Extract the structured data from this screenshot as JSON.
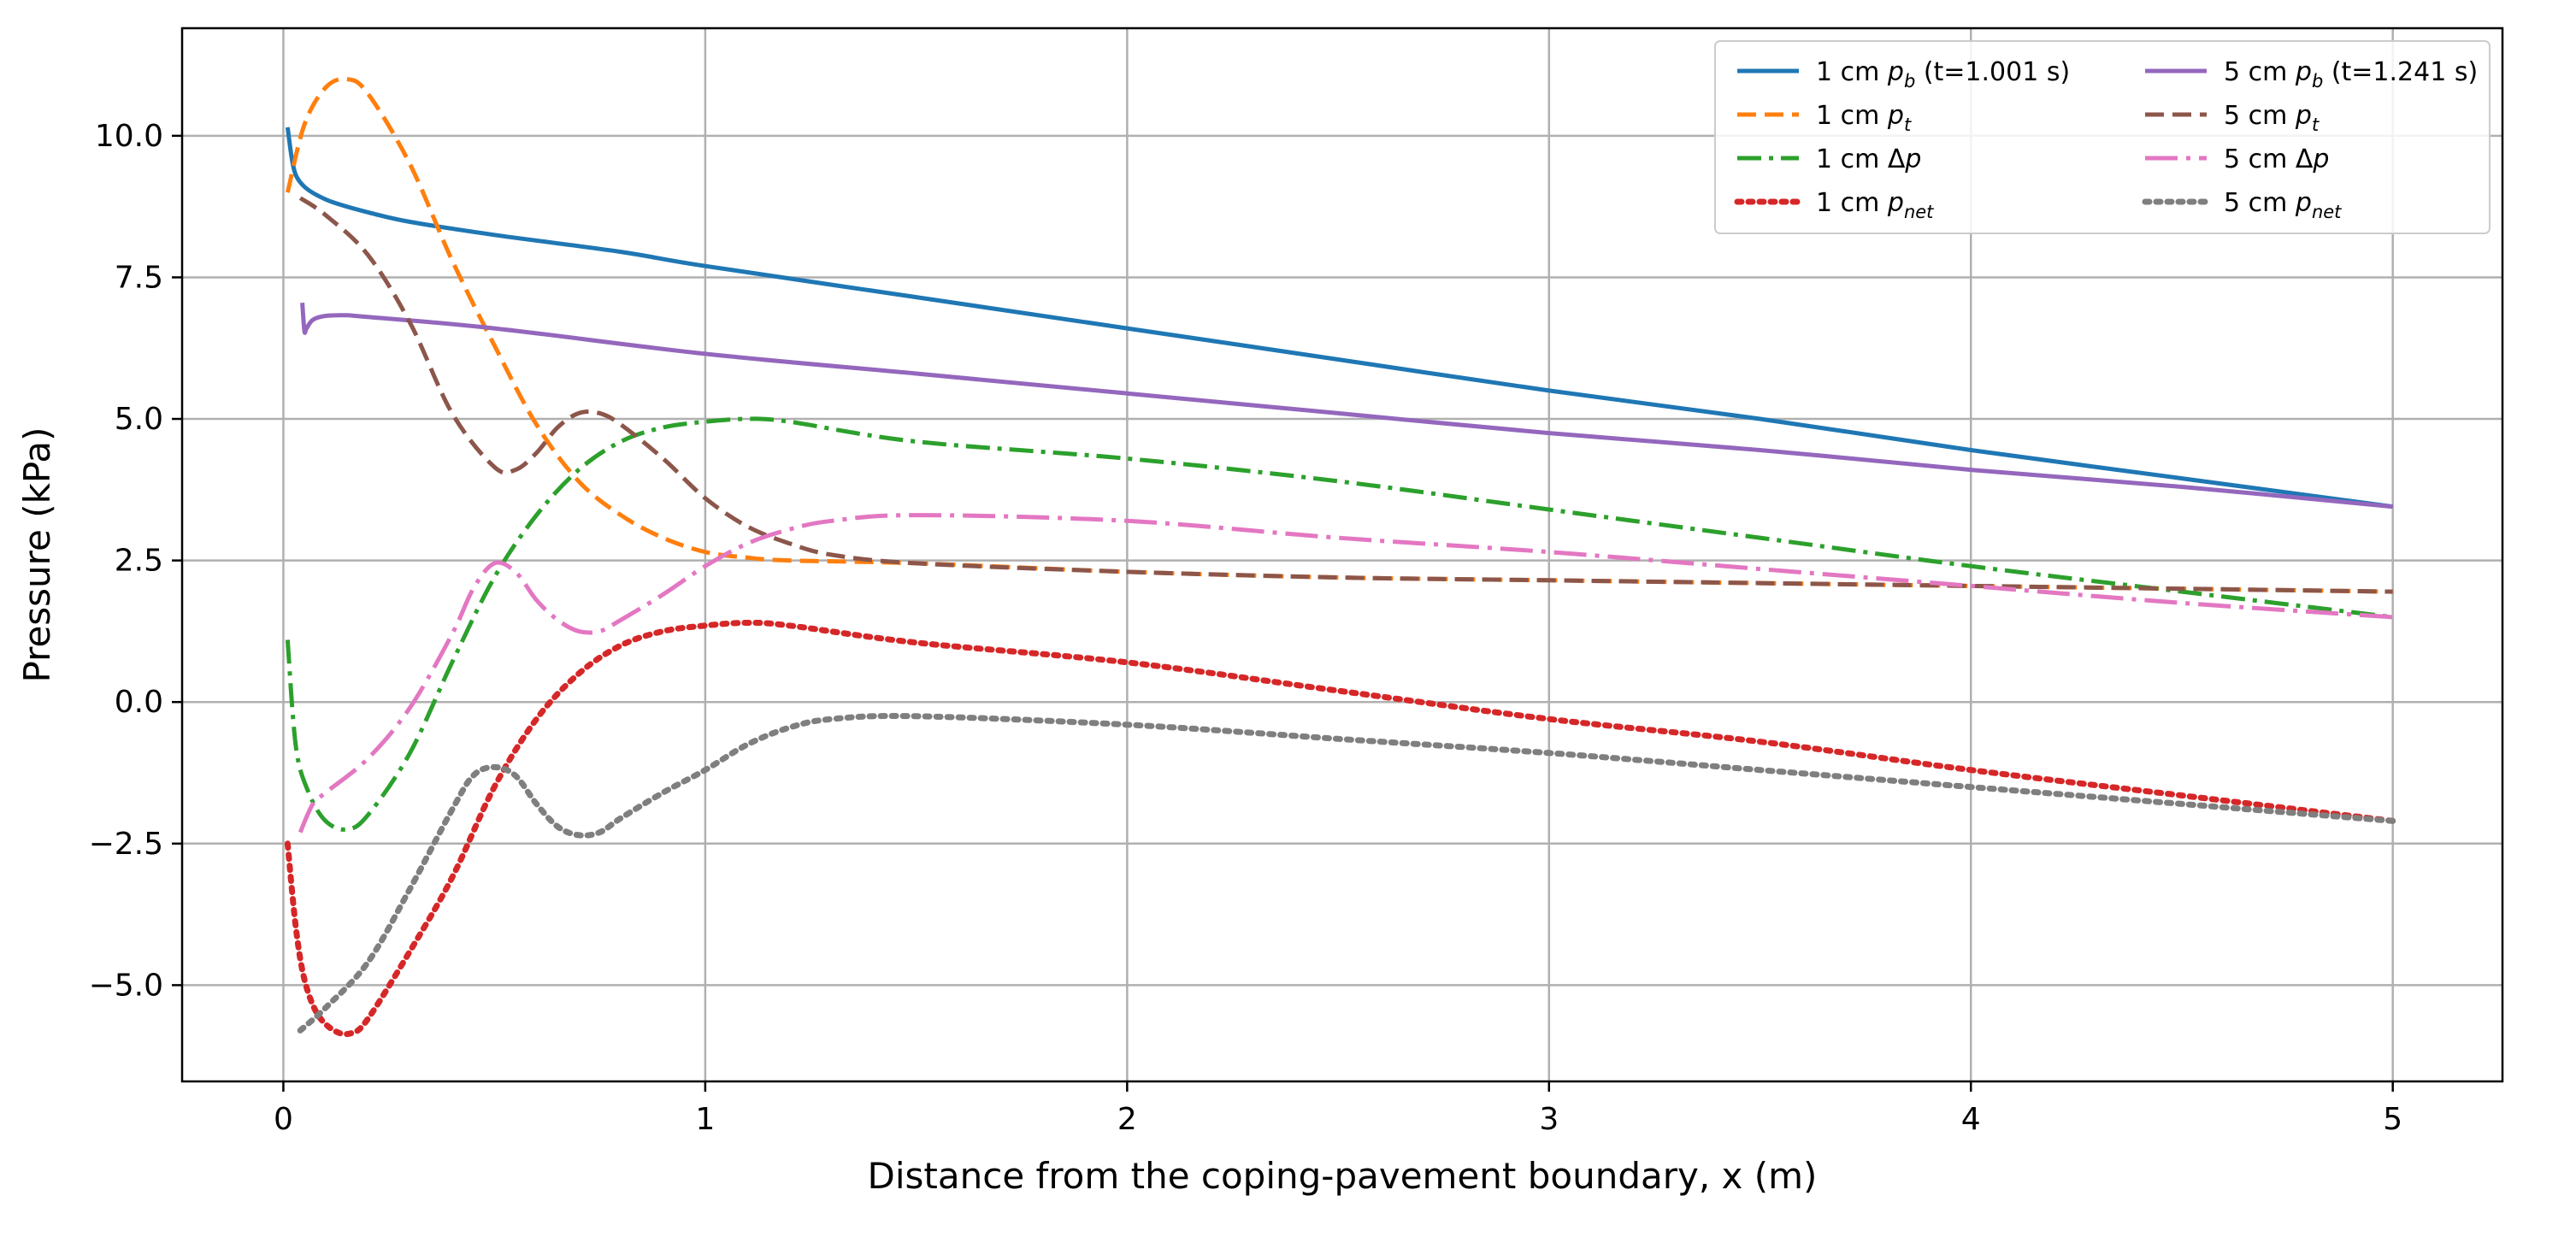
{
  "chart_data": {
    "type": "line",
    "title": "",
    "xlabel": "Distance from the coping-pavement boundary, x (m)",
    "ylabel": "Pressure (kPa)",
    "xlim": [
      -0.24,
      5.26
    ],
    "ylim": [
      -6.7,
      11.9
    ],
    "xticks": [
      0,
      1,
      2,
      3,
      4,
      5
    ],
    "xtick_labels": [
      "0",
      "1",
      "2",
      "3",
      "4",
      "5"
    ],
    "yticks": [
      -5.0,
      -2.5,
      0.0,
      2.5,
      5.0,
      7.5,
      10.0
    ],
    "ytick_labels": [
      "−5.0",
      "−2.5",
      "0.0",
      "2.5",
      "5.0",
      "7.5",
      "10.0"
    ],
    "grid": true,
    "legend_position": "top-right",
    "legend_columns": 2,
    "series": [
      {
        "name": "1 cm p_b (t=1.001 s)",
        "legend": {
          "prefix": "1 cm ",
          "var": "p",
          "sub": "b",
          "suffix": " (t=1.001 s)"
        },
        "color": "#1f77b4",
        "dash": "solid",
        "x": [
          0.01,
          0.02,
          0.03,
          0.05,
          0.08,
          0.12,
          0.2,
          0.3,
          0.5,
          0.8,
          1.0,
          1.5,
          2.0,
          2.5,
          3.0,
          3.5,
          4.0,
          4.5,
          5.0
        ],
        "y": [
          10.15,
          9.6,
          9.3,
          9.1,
          8.95,
          8.82,
          8.65,
          8.48,
          8.25,
          7.95,
          7.7,
          7.15,
          6.6,
          6.05,
          5.5,
          5.0,
          4.45,
          3.95,
          3.45
        ]
      },
      {
        "name": "1 cm p_t",
        "legend": {
          "prefix": "1 cm ",
          "var": "p",
          "sub": "t",
          "suffix": ""
        },
        "color": "#ff7f0e",
        "dash": "dashed",
        "x": [
          0.01,
          0.05,
          0.1,
          0.15,
          0.2,
          0.3,
          0.4,
          0.5,
          0.6,
          0.7,
          0.8,
          0.9,
          1.0,
          1.1,
          1.2,
          1.5,
          2.0,
          2.5,
          3.0,
          3.5,
          4.0,
          4.5,
          5.0
        ],
        "y": [
          9.0,
          10.2,
          10.85,
          11.0,
          10.75,
          9.5,
          7.8,
          6.3,
          4.9,
          3.9,
          3.3,
          2.9,
          2.65,
          2.55,
          2.5,
          2.45,
          2.3,
          2.2,
          2.15,
          2.1,
          2.05,
          2.0,
          1.95
        ]
      },
      {
        "name": "1 cm Δp",
        "legend": {
          "prefix": "1 cm Δ",
          "var": "p",
          "sub": "",
          "suffix": ""
        },
        "color": "#2ca02c",
        "dash": "dashdot",
        "x": [
          0.01,
          0.03,
          0.06,
          0.1,
          0.15,
          0.2,
          0.3,
          0.4,
          0.5,
          0.6,
          0.7,
          0.8,
          0.9,
          1.0,
          1.1,
          1.2,
          1.5,
          2.0,
          2.5,
          3.0,
          3.5,
          4.0,
          4.5,
          5.0
        ],
        "y": [
          1.1,
          -0.8,
          -1.6,
          -2.1,
          -2.25,
          -2.0,
          -0.9,
          0.7,
          2.2,
          3.3,
          4.1,
          4.6,
          4.85,
          4.95,
          5.0,
          4.95,
          4.6,
          4.3,
          3.9,
          3.4,
          2.9,
          2.4,
          1.95,
          1.5
        ]
      },
      {
        "name": "1 cm p_net",
        "legend": {
          "prefix": "1 cm ",
          "var": "p",
          "sub": "net",
          "suffix": ""
        },
        "color": "#d62728",
        "dash": "dotted",
        "x": [
          0.01,
          0.03,
          0.05,
          0.08,
          0.12,
          0.16,
          0.2,
          0.3,
          0.4,
          0.5,
          0.6,
          0.7,
          0.8,
          0.9,
          1.0,
          1.1,
          1.2,
          1.5,
          2.0,
          2.5,
          3.0,
          3.5,
          4.0,
          4.5,
          5.0
        ],
        "y": [
          -2.5,
          -4.0,
          -4.9,
          -5.5,
          -5.8,
          -5.85,
          -5.6,
          -4.4,
          -3.1,
          -1.5,
          -0.3,
          0.5,
          1.0,
          1.25,
          1.35,
          1.4,
          1.35,
          1.05,
          0.7,
          0.2,
          -0.3,
          -0.7,
          -1.2,
          -1.65,
          -2.1
        ]
      },
      {
        "name": "5 cm p_b (t=1.241 s)",
        "legend": {
          "prefix": "5 cm ",
          "var": "p",
          "sub": "b",
          "suffix": " (t=1.241 s)"
        },
        "color": "#9467bd",
        "dash": "solid",
        "x": [
          0.045,
          0.05,
          0.055,
          0.07,
          0.1,
          0.15,
          0.2,
          0.5,
          1.0,
          1.5,
          2.0,
          2.5,
          3.0,
          3.5,
          4.0,
          4.5,
          5.0
        ],
        "y": [
          7.05,
          6.55,
          6.6,
          6.75,
          6.82,
          6.83,
          6.8,
          6.6,
          6.15,
          5.8,
          5.45,
          5.1,
          4.75,
          4.45,
          4.1,
          3.8,
          3.45
        ]
      },
      {
        "name": "5 cm p_t",
        "legend": {
          "prefix": "5 cm ",
          "var": "p",
          "sub": "t",
          "suffix": ""
        },
        "color": "#8c564b",
        "dash": "dashed",
        "x": [
          0.04,
          0.1,
          0.2,
          0.3,
          0.4,
          0.5,
          0.55,
          0.6,
          0.65,
          0.7,
          0.75,
          0.8,
          0.9,
          1.0,
          1.1,
          1.2,
          1.3,
          1.5,
          2.0,
          2.5,
          3.0,
          3.5,
          4.0,
          4.5,
          5.0
        ],
        "y": [
          8.9,
          8.6,
          7.9,
          6.7,
          5.1,
          4.15,
          4.1,
          4.4,
          4.85,
          5.1,
          5.1,
          4.9,
          4.3,
          3.6,
          3.1,
          2.8,
          2.6,
          2.45,
          2.3,
          2.2,
          2.15,
          2.1,
          2.05,
          2.0,
          1.95
        ]
      },
      {
        "name": "5 cm Δp",
        "legend": {
          "prefix": "5 cm Δ",
          "var": "p",
          "sub": "",
          "suffix": ""
        },
        "color": "#e377c2",
        "dash": "dashdotlong",
        "x": [
          0.04,
          0.07,
          0.1,
          0.2,
          0.3,
          0.4,
          0.45,
          0.5,
          0.55,
          0.6,
          0.65,
          0.7,
          0.75,
          0.8,
          0.9,
          1.0,
          1.1,
          1.2,
          1.3,
          1.5,
          2.0,
          2.5,
          3.0,
          3.5,
          4.0,
          4.5,
          5.0
        ],
        "y": [
          -2.3,
          -1.8,
          -1.6,
          -1.0,
          -0.1,
          1.2,
          2.0,
          2.45,
          2.3,
          1.8,
          1.45,
          1.25,
          1.25,
          1.45,
          1.9,
          2.4,
          2.8,
          3.05,
          3.2,
          3.3,
          3.2,
          2.9,
          2.65,
          2.35,
          2.05,
          1.75,
          1.5
        ]
      },
      {
        "name": "5 cm p_net",
        "legend": {
          "prefix": "5 cm ",
          "var": "p",
          "sub": "net",
          "suffix": ""
        },
        "color": "#7f7f7f",
        "dash": "dotted",
        "x": [
          0.04,
          0.1,
          0.2,
          0.3,
          0.4,
          0.45,
          0.5,
          0.55,
          0.6,
          0.65,
          0.7,
          0.75,
          0.8,
          0.9,
          1.0,
          1.1,
          1.2,
          1.3,
          1.5,
          2.0,
          2.5,
          3.0,
          3.5,
          4.0,
          4.5,
          5.0
        ],
        "y": [
          -5.8,
          -5.4,
          -4.6,
          -3.3,
          -1.9,
          -1.3,
          -1.15,
          -1.3,
          -1.8,
          -2.2,
          -2.35,
          -2.3,
          -2.05,
          -1.6,
          -1.2,
          -0.75,
          -0.45,
          -0.3,
          -0.25,
          -0.4,
          -0.65,
          -0.9,
          -1.2,
          -1.5,
          -1.8,
          -2.1
        ]
      }
    ]
  }
}
